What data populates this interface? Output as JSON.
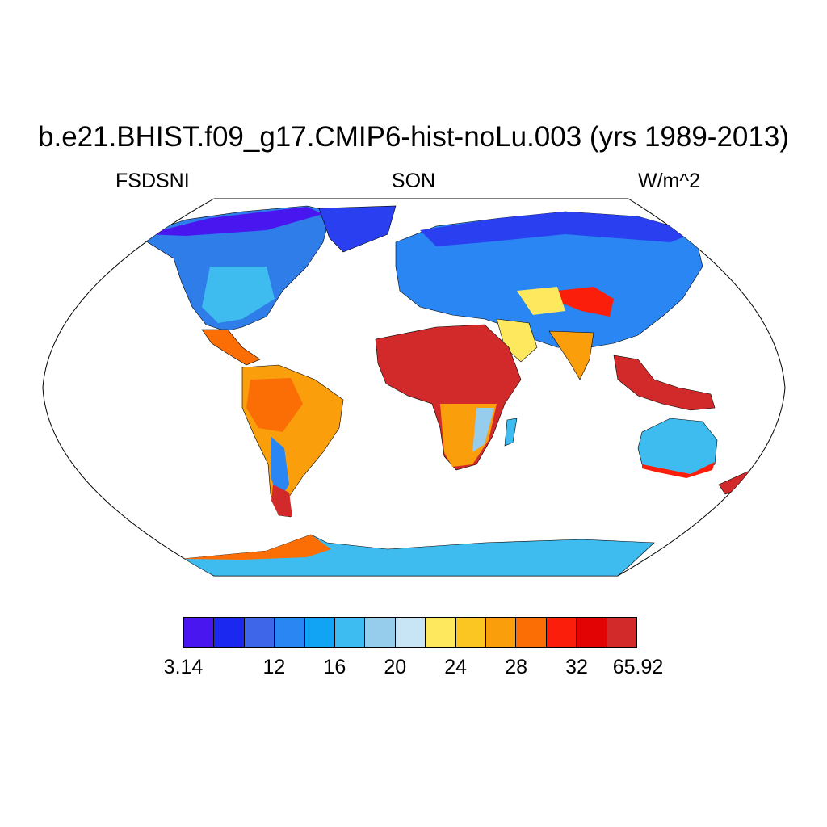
{
  "title": "b.e21.BHIST.f09_g17.CMIP6-hist-noLu.003 (yrs 1989-2013)",
  "left_string": "FSDSNI",
  "center_string": "SON",
  "right_string": "W/m^2",
  "projection": "Robinson",
  "colorbar": {
    "colors": [
      "#4a16f0",
      "#1b28f0",
      "#3e66e8",
      "#2a86f2",
      "#12a4f4",
      "#3cbcf0",
      "#96cdec",
      "#c8e5f6",
      "#fde85e",
      "#fcc622",
      "#fa9e0c",
      "#fb6e06",
      "#fb1e0a",
      "#e20404",
      "#d22a2a"
    ],
    "labels": [
      "3.14",
      "12",
      "16",
      "20",
      "24",
      "28",
      "32",
      "65.92"
    ]
  },
  "chart_data": {
    "type": "heatmap",
    "variable": "FSDSNI",
    "season": "SON",
    "units": "W/m^2",
    "color_scale_min": 3.14,
    "color_scale_max": 65.92,
    "tick_labels": [
      "3.14",
      "12",
      "16",
      "20",
      "24",
      "28",
      "32",
      "65.92"
    ]
  }
}
